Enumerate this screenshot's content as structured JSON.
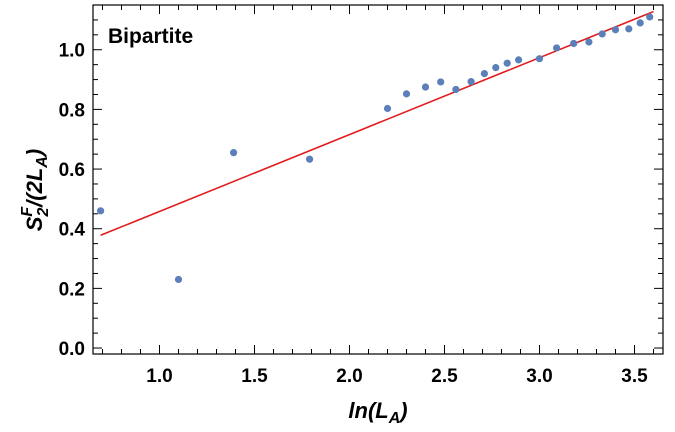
{
  "chart_data": {
    "type": "scatter",
    "title": "Bipartite",
    "xlabel": "ln(L_A)",
    "ylabel": "S_2^F/(2L_A)",
    "xlim": [
      0.65,
      3.65
    ],
    "ylim": [
      -0.02,
      1.15
    ],
    "x_ticks": [
      "1.0",
      "1.5",
      "2.0",
      "2.5",
      "3.0",
      "3.5"
    ],
    "y_ticks": [
      "0.0",
      "0.2",
      "0.4",
      "0.6",
      "0.8",
      "1.0"
    ],
    "grid": false,
    "colors": {
      "points": "#5b7fb8",
      "fit_line": "#e31a1c"
    },
    "series": [
      {
        "type": "scatter",
        "x": [
          0.69,
          1.1,
          1.39,
          1.79,
          2.2,
          2.3,
          2.4,
          2.48,
          2.56,
          2.64,
          2.71,
          2.77,
          2.83,
          2.89,
          3.0,
          3.09,
          3.18,
          3.26,
          3.33,
          3.4,
          3.47,
          3.53,
          3.58
        ],
        "y": [
          0.46,
          0.23,
          0.655,
          0.633,
          0.803,
          0.852,
          0.875,
          0.892,
          0.867,
          0.893,
          0.92,
          0.94,
          0.955,
          0.966,
          0.97,
          1.006,
          1.021,
          1.026,
          1.053,
          1.067,
          1.07,
          1.09,
          1.11
        ]
      },
      {
        "type": "line",
        "x": [
          0.69,
          3.6
        ],
        "y": [
          0.378,
          1.128
        ]
      }
    ]
  }
}
